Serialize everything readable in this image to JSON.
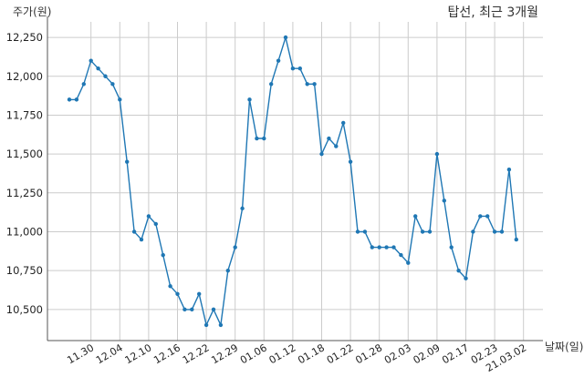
{
  "chart_data": {
    "type": "line",
    "title": "탑선, 최근 3개월",
    "ylabel": "주가(원)",
    "xlabel": "날짜(일)",
    "ylim": [
      10300,
      12350
    ],
    "yticks": [
      10500,
      10750,
      11000,
      11250,
      11500,
      11750,
      12000,
      12250
    ],
    "ytick_labels": [
      "10,500",
      "10,750",
      "11,000",
      "11,250",
      "11,500",
      "11,750",
      "12,000",
      "12,250"
    ],
    "xtick_labels": [
      {
        "label": "11.30",
        "index": 3
      },
      {
        "label": "12.04",
        "index": 7
      },
      {
        "label": "12.10",
        "index": 11
      },
      {
        "label": "12.16",
        "index": 15
      },
      {
        "label": "12.22",
        "index": 19
      },
      {
        "label": "12.29",
        "index": 23
      },
      {
        "label": "01.06",
        "index": 27
      },
      {
        "label": "01.12",
        "index": 31
      },
      {
        "label": "01.18",
        "index": 35
      },
      {
        "label": "01.22",
        "index": 39
      },
      {
        "label": "01.28",
        "index": 43
      },
      {
        "label": "02.03",
        "index": 47
      },
      {
        "label": "02.09",
        "index": 51
      },
      {
        "label": "02.17",
        "index": 55
      },
      {
        "label": "02.23",
        "index": 59
      },
      {
        "label": "21.03.02",
        "index": 63
      }
    ],
    "grid": true,
    "color": "#1f77b4",
    "series": [
      {
        "values": [
          11850,
          11850,
          11950,
          12100,
          12050,
          12000,
          11950,
          11850,
          11450,
          11000,
          10950,
          11100,
          11050,
          10850,
          10650,
          10600,
          10500,
          10500,
          10600,
          10400,
          10500,
          10400,
          10750,
          10900,
          11150,
          11850,
          11600,
          11600,
          11950,
          12100,
          12250,
          12050,
          12050,
          11950,
          11950,
          11500,
          11600,
          11550,
          11700,
          11450,
          11000,
          11000,
          10900,
          10900,
          10900,
          10900,
          10850,
          10800,
          11100,
          11000,
          11000,
          11500,
          11200,
          10900,
          10750,
          10700,
          11000,
          11100,
          11100,
          11000,
          11000,
          11400,
          10950
        ]
      }
    ]
  }
}
